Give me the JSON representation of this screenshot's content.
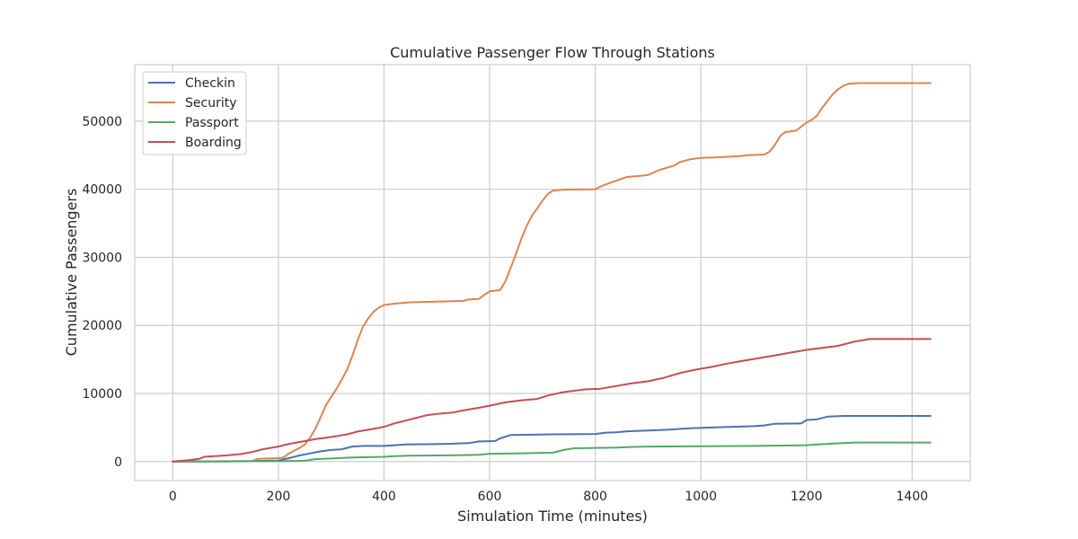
{
  "chart_data": {
    "type": "line",
    "title": "Cumulative Passenger Flow Through Stations",
    "xlabel": "Simulation Time (minutes)",
    "ylabel": "Cumulative Passengers",
    "xlim": [
      -72,
      1510
    ],
    "ylim": [
      -2800,
      58300
    ],
    "xticks": [
      0,
      200,
      400,
      600,
      800,
      1000,
      1200,
      1400
    ],
    "xtick_labels": [
      "0",
      "200",
      "400",
      "600",
      "800",
      "1000",
      "1200",
      "1400"
    ],
    "yticks": [
      0,
      10000,
      20000,
      30000,
      40000,
      50000
    ],
    "ytick_labels": [
      "0",
      "10000",
      "20000",
      "30000",
      "40000",
      "50000"
    ],
    "grid": true,
    "legend_position": "top-left",
    "series": [
      {
        "name": "Checkin",
        "color": "#4c72b0",
        "points": [
          [
            0,
            0
          ],
          [
            50,
            20
          ],
          [
            100,
            50
          ],
          [
            150,
            80
          ],
          [
            200,
            150
          ],
          [
            220,
            500
          ],
          [
            240,
            900
          ],
          [
            260,
            1200
          ],
          [
            280,
            1500
          ],
          [
            300,
            1700
          ],
          [
            320,
            1800
          ],
          [
            340,
            2200
          ],
          [
            360,
            2300
          ],
          [
            400,
            2300
          ],
          [
            420,
            2400
          ],
          [
            440,
            2500
          ],
          [
            480,
            2550
          ],
          [
            520,
            2600
          ],
          [
            560,
            2700
          ],
          [
            580,
            2950
          ],
          [
            610,
            3000
          ],
          [
            620,
            3400
          ],
          [
            640,
            3900
          ],
          [
            680,
            3950
          ],
          [
            720,
            4000
          ],
          [
            800,
            4050
          ],
          [
            820,
            4250
          ],
          [
            840,
            4300
          ],
          [
            860,
            4450
          ],
          [
            900,
            4550
          ],
          [
            940,
            4700
          ],
          [
            980,
            4900
          ],
          [
            1020,
            5000
          ],
          [
            1060,
            5100
          ],
          [
            1100,
            5200
          ],
          [
            1120,
            5300
          ],
          [
            1140,
            5550
          ],
          [
            1190,
            5600
          ],
          [
            1200,
            6100
          ],
          [
            1220,
            6200
          ],
          [
            1240,
            6600
          ],
          [
            1270,
            6700
          ],
          [
            1435,
            6700
          ]
        ]
      },
      {
        "name": "Security",
        "color": "#dd8452",
        "points": [
          [
            0,
            0
          ],
          [
            100,
            20
          ],
          [
            150,
            50
          ],
          [
            160,
            400
          ],
          [
            200,
            500
          ],
          [
            210,
            600
          ],
          [
            220,
            1200
          ],
          [
            240,
            2000
          ],
          [
            250,
            2500
          ],
          [
            260,
            3500
          ],
          [
            270,
            4800
          ],
          [
            280,
            6500
          ],
          [
            290,
            8300
          ],
          [
            300,
            9500
          ],
          [
            310,
            10700
          ],
          [
            320,
            12000
          ],
          [
            330,
            13500
          ],
          [
            340,
            15500
          ],
          [
            350,
            17800
          ],
          [
            360,
            19800
          ],
          [
            370,
            21000
          ],
          [
            380,
            22000
          ],
          [
            390,
            22600
          ],
          [
            400,
            23000
          ],
          [
            420,
            23200
          ],
          [
            450,
            23400
          ],
          [
            500,
            23500
          ],
          [
            550,
            23600
          ],
          [
            560,
            23800
          ],
          [
            580,
            23900
          ],
          [
            590,
            24500
          ],
          [
            600,
            25000
          ],
          [
            610,
            25100
          ],
          [
            620,
            25200
          ],
          [
            630,
            26500
          ],
          [
            640,
            28500
          ],
          [
            650,
            30500
          ],
          [
            660,
            32700
          ],
          [
            670,
            34600
          ],
          [
            680,
            36100
          ],
          [
            690,
            37200
          ],
          [
            700,
            38300
          ],
          [
            710,
            39300
          ],
          [
            720,
            39800
          ],
          [
            740,
            39950
          ],
          [
            800,
            40000
          ],
          [
            810,
            40400
          ],
          [
            830,
            41000
          ],
          [
            860,
            41800
          ],
          [
            890,
            42000
          ],
          [
            900,
            42100
          ],
          [
            920,
            42800
          ],
          [
            950,
            43500
          ],
          [
            960,
            44000
          ],
          [
            980,
            44400
          ],
          [
            1000,
            44600
          ],
          [
            1030,
            44700
          ],
          [
            1070,
            44850
          ],
          [
            1090,
            45000
          ],
          [
            1120,
            45100
          ],
          [
            1130,
            45500
          ],
          [
            1140,
            46500
          ],
          [
            1150,
            47800
          ],
          [
            1160,
            48400
          ],
          [
            1180,
            48600
          ],
          [
            1190,
            49200
          ],
          [
            1200,
            49800
          ],
          [
            1210,
            50200
          ],
          [
            1220,
            50800
          ],
          [
            1230,
            52000
          ],
          [
            1240,
            53000
          ],
          [
            1250,
            54000
          ],
          [
            1260,
            54700
          ],
          [
            1270,
            55200
          ],
          [
            1280,
            55500
          ],
          [
            1300,
            55600
          ],
          [
            1435,
            55600
          ]
        ]
      },
      {
        "name": "Passport",
        "color": "#55a868",
        "points": [
          [
            0,
            0
          ],
          [
            100,
            10
          ],
          [
            200,
            50
          ],
          [
            250,
            120
          ],
          [
            270,
            350
          ],
          [
            300,
            450
          ],
          [
            340,
            600
          ],
          [
            400,
            700
          ],
          [
            420,
            800
          ],
          [
            450,
            850
          ],
          [
            500,
            900
          ],
          [
            550,
            950
          ],
          [
            580,
            1000
          ],
          [
            600,
            1150
          ],
          [
            650,
            1200
          ],
          [
            720,
            1300
          ],
          [
            740,
            1700
          ],
          [
            760,
            1950
          ],
          [
            800,
            2000
          ],
          [
            840,
            2050
          ],
          [
            870,
            2150
          ],
          [
            900,
            2200
          ],
          [
            1000,
            2250
          ],
          [
            1100,
            2300
          ],
          [
            1200,
            2400
          ],
          [
            1220,
            2500
          ],
          [
            1240,
            2600
          ],
          [
            1270,
            2700
          ],
          [
            1290,
            2800
          ],
          [
            1435,
            2800
          ]
        ]
      },
      {
        "name": "Boarding",
        "color": "#c44e52",
        "points": [
          [
            0,
            0
          ],
          [
            30,
            200
          ],
          [
            50,
            400
          ],
          [
            60,
            700
          ],
          [
            100,
            900
          ],
          [
            130,
            1100
          ],
          [
            150,
            1400
          ],
          [
            170,
            1800
          ],
          [
            200,
            2200
          ],
          [
            220,
            2600
          ],
          [
            250,
            3000
          ],
          [
            270,
            3300
          ],
          [
            300,
            3600
          ],
          [
            330,
            4000
          ],
          [
            350,
            4400
          ],
          [
            380,
            4800
          ],
          [
            400,
            5100
          ],
          [
            420,
            5600
          ],
          [
            440,
            6000
          ],
          [
            460,
            6400
          ],
          [
            480,
            6800
          ],
          [
            500,
            7000
          ],
          [
            530,
            7200
          ],
          [
            550,
            7500
          ],
          [
            580,
            7900
          ],
          [
            600,
            8200
          ],
          [
            630,
            8700
          ],
          [
            660,
            9000
          ],
          [
            690,
            9200
          ],
          [
            710,
            9700
          ],
          [
            740,
            10200
          ],
          [
            780,
            10600
          ],
          [
            810,
            10700
          ],
          [
            840,
            11100
          ],
          [
            870,
            11500
          ],
          [
            900,
            11800
          ],
          [
            930,
            12300
          ],
          [
            960,
            13000
          ],
          [
            990,
            13500
          ],
          [
            1020,
            13900
          ],
          [
            1050,
            14400
          ],
          [
            1080,
            14800
          ],
          [
            1110,
            15200
          ],
          [
            1140,
            15600
          ],
          [
            1170,
            16000
          ],
          [
            1200,
            16400
          ],
          [
            1230,
            16700
          ],
          [
            1260,
            17000
          ],
          [
            1290,
            17600
          ],
          [
            1320,
            18000
          ],
          [
            1435,
            18000
          ]
        ]
      }
    ]
  }
}
